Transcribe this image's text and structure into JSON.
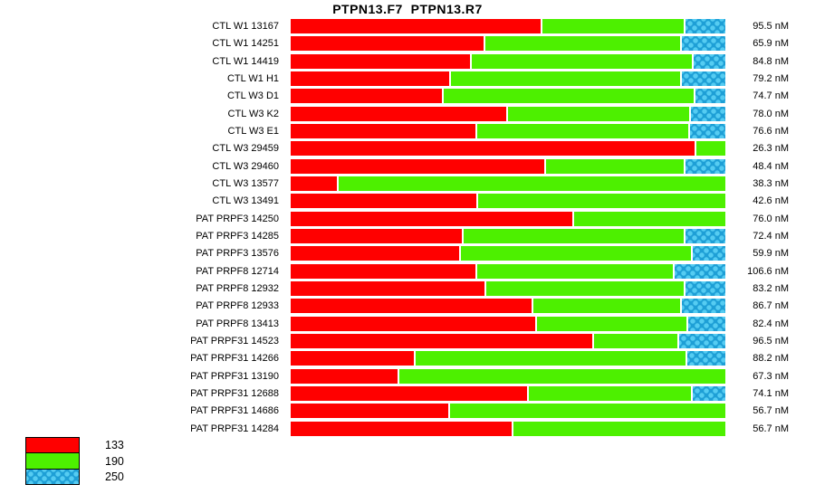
{
  "title": "PTPN13.F7  PTPN13.R7",
  "colors": {
    "red": "#ff0000",
    "green": "#4df000",
    "blue_base": "#1e9fd6",
    "blue_dot": "#55ccf2",
    "background": "#ffffff",
    "text": "#000000"
  },
  "legend": {
    "items": [
      {
        "label": "133",
        "swatch": "red-swatch",
        "color_key": "red"
      },
      {
        "label": "190",
        "swatch": "green-swatch",
        "color_key": "green"
      },
      {
        "label": "250",
        "swatch": "blue-hatched-swatch",
        "color_key": "blue"
      }
    ]
  },
  "chart_data": {
    "type": "bar",
    "orientation": "horizontal",
    "stacked": true,
    "normalized_percent": true,
    "title": "PTPN13.F7  PTPN13.R7",
    "unit": "nM",
    "series_names": [
      "133",
      "190",
      "250"
    ],
    "legend_position": "bottom-left",
    "grid": false,
    "rows": [
      {
        "label": "CTL W1 13167",
        "value_text": "95.5 nM",
        "value": 95.5,
        "segments_pct": [
          57.9,
          32.9,
          9.2
        ]
      },
      {
        "label": "CTL W1 14251",
        "value_text": "65.9 nM",
        "value": 65.9,
        "segments_pct": [
          44.8,
          45.3,
          9.9
        ]
      },
      {
        "label": "CTL W1 14419",
        "value_text": "84.8 nM",
        "value": 84.8,
        "segments_pct": [
          41.7,
          51.1,
          7.2
        ]
      },
      {
        "label": "CTL W1 H1",
        "value_text": "79.2 nM",
        "value": 79.2,
        "segments_pct": [
          36.9,
          53.1,
          10.0
        ]
      },
      {
        "label": "CTL W3 D1",
        "value_text": "74.7 nM",
        "value": 74.7,
        "segments_pct": [
          35.2,
          58.0,
          6.8
        ]
      },
      {
        "label": "CTL W3 K2",
        "value_text": "78.0 nM",
        "value": 78.0,
        "segments_pct": [
          49.9,
          42.2,
          7.9
        ]
      },
      {
        "label": "CTL W3 E1",
        "value_text": "76.6 nM",
        "value": 76.6,
        "segments_pct": [
          42.9,
          49.0,
          8.1
        ]
      },
      {
        "label": "CTL W3 29459",
        "value_text": "26.3 nM",
        "value": 26.3,
        "segments_pct": [
          93.4,
          6.6,
          0
        ]
      },
      {
        "label": "CTL W3 29460",
        "value_text": "48.4 nM",
        "value": 48.4,
        "segments_pct": [
          58.8,
          32.0,
          9.2
        ]
      },
      {
        "label": "CTL W3 13577",
        "value_text": "38.3 nM",
        "value": 38.3,
        "segments_pct": [
          11.0,
          89.0,
          0
        ]
      },
      {
        "label": "CTL W3 13491",
        "value_text": "42.6 nM",
        "value": 42.6,
        "segments_pct": [
          43.2,
          56.8,
          0
        ]
      },
      {
        "label": "PAT PRPF3 14250",
        "value_text": "76.0 nM",
        "value": 76.0,
        "segments_pct": [
          65.2,
          34.8,
          0
        ]
      },
      {
        "label": "PAT PRPF3 14285",
        "value_text": "72.4 nM",
        "value": 72.4,
        "segments_pct": [
          39.7,
          51.1,
          9.2
        ]
      },
      {
        "label": "PAT PRPF3 13576",
        "value_text": "59.9 nM",
        "value": 59.9,
        "segments_pct": [
          39.2,
          53.2,
          7.6
        ]
      },
      {
        "label": "PAT PRPF8 12714",
        "value_text": "106.6 nM",
        "value": 106.6,
        "segments_pct": [
          42.9,
          45.4,
          11.7
        ]
      },
      {
        "label": "PAT PRPF8 12932",
        "value_text": "83.2 nM",
        "value": 83.2,
        "segments_pct": [
          44.9,
          45.9,
          9.2
        ]
      },
      {
        "label": "PAT PRPF8 12933",
        "value_text": "86.7 nM",
        "value": 86.7,
        "segments_pct": [
          55.9,
          34.2,
          9.9
        ]
      },
      {
        "label": "PAT PRPF8 13413",
        "value_text": "82.4 nM",
        "value": 82.4,
        "segments_pct": [
          56.6,
          34.9,
          8.5
        ]
      },
      {
        "label": "PAT PRPF31 14523",
        "value_text": "96.5 nM",
        "value": 96.5,
        "segments_pct": [
          69.7,
          19.7,
          10.6
        ]
      },
      {
        "label": "PAT PRPF31 14266",
        "value_text": "88.2 nM",
        "value": 88.2,
        "segments_pct": [
          28.8,
          62.5,
          8.7
        ]
      },
      {
        "label": "PAT PRPF31 13190",
        "value_text": "67.3 nM",
        "value": 67.3,
        "segments_pct": [
          25.1,
          74.9,
          0
        ]
      },
      {
        "label": "PAT PRPF31 12688",
        "value_text": "74.1 nM",
        "value": 74.1,
        "segments_pct": [
          54.8,
          37.7,
          7.5
        ]
      },
      {
        "label": "PAT PRPF31 14686",
        "value_text": "56.7 nM",
        "value": 56.7,
        "segments_pct": [
          36.7,
          63.3,
          0
        ]
      },
      {
        "label": "PAT PRPF31 14284",
        "value_text": "56.7 nM",
        "value": 56.7,
        "segments_pct": [
          51.2,
          48.8,
          0
        ]
      }
    ]
  }
}
